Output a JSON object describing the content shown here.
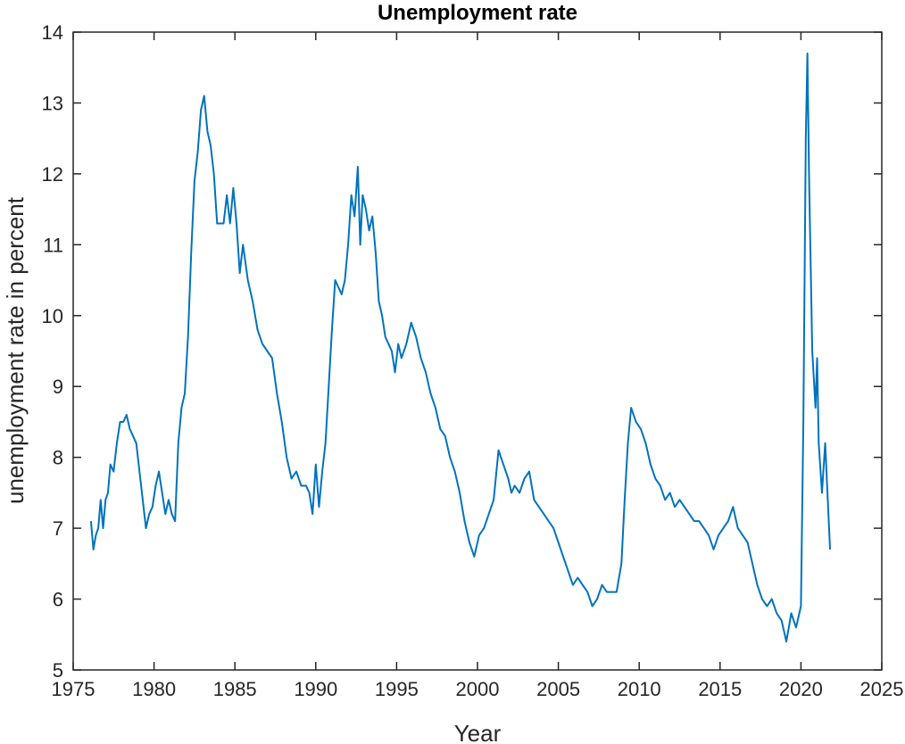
{
  "chart_data": {
    "type": "line",
    "title": "Unemployment rate",
    "xlabel": "Year",
    "ylabel": "unemployment rate in percent",
    "xlim": [
      1975,
      2025
    ],
    "ylim": [
      5,
      14
    ],
    "xticks": [
      1975,
      1980,
      1985,
      1990,
      1995,
      2000,
      2005,
      2010,
      2015,
      2020,
      2025
    ],
    "yticks": [
      5,
      6,
      7,
      8,
      9,
      10,
      11,
      12,
      13,
      14
    ],
    "grid": false,
    "legend": "none",
    "series": [
      {
        "color": "#0072BD",
        "x": [
          1976.1,
          1976.25,
          1976.4,
          1976.55,
          1976.7,
          1976.85,
          1977.0,
          1977.15,
          1977.3,
          1977.5,
          1977.7,
          1977.9,
          1978.1,
          1978.3,
          1978.5,
          1978.7,
          1978.9,
          1979.1,
          1979.3,
          1979.5,
          1979.7,
          1979.9,
          1980.1,
          1980.3,
          1980.5,
          1980.7,
          1980.9,
          1981.1,
          1981.3,
          1981.5,
          1981.7,
          1981.9,
          1982.1,
          1982.3,
          1982.5,
          1982.7,
          1982.9,
          1983.1,
          1983.3,
          1983.5,
          1983.7,
          1983.9,
          1984.1,
          1984.3,
          1984.5,
          1984.7,
          1984.9,
          1985.1,
          1985.3,
          1985.5,
          1985.8,
          1986.1,
          1986.4,
          1986.7,
          1987.0,
          1987.3,
          1987.6,
          1987.9,
          1988.2,
          1988.5,
          1988.8,
          1989.1,
          1989.4,
          1989.6,
          1989.8,
          1990.0,
          1990.2,
          1990.4,
          1990.6,
          1990.8,
          1991.0,
          1991.2,
          1991.4,
          1991.6,
          1991.8,
          1992.0,
          1992.2,
          1992.4,
          1992.6,
          1992.75,
          1992.9,
          1993.1,
          1993.3,
          1993.5,
          1993.7,
          1993.9,
          1994.1,
          1994.3,
          1994.5,
          1994.7,
          1994.9,
          1995.1,
          1995.3,
          1995.6,
          1995.9,
          1996.2,
          1996.5,
          1996.8,
          1997.1,
          1997.4,
          1997.7,
          1998.0,
          1998.3,
          1998.6,
          1998.9,
          1999.2,
          1999.5,
          1999.8,
          2000.1,
          2000.4,
          2000.7,
          2001.0,
          2001.3,
          2001.6,
          2001.9,
          2002.1,
          2002.3,
          2002.6,
          2002.9,
          2003.2,
          2003.5,
          2003.8,
          2004.1,
          2004.4,
          2004.7,
          2005.0,
          2005.3,
          2005.6,
          2005.9,
          2006.2,
          2006.5,
          2006.8,
          2007.1,
          2007.4,
          2007.7,
          2008.0,
          2008.3,
          2008.6,
          2008.9,
          2009.1,
          2009.3,
          2009.5,
          2009.8,
          2010.1,
          2010.4,
          2010.7,
          2011.0,
          2011.3,
          2011.6,
          2011.9,
          2012.2,
          2012.5,
          2012.8,
          2013.1,
          2013.4,
          2013.7,
          2014.0,
          2014.3,
          2014.6,
          2014.9,
          2015.2,
          2015.5,
          2015.8,
          2016.1,
          2016.4,
          2016.7,
          2017.0,
          2017.3,
          2017.6,
          2017.9,
          2018.2,
          2018.5,
          2018.8,
          2019.1,
          2019.4,
          2019.7,
          2020.0,
          2020.15,
          2020.3,
          2020.4,
          2020.5,
          2020.7,
          2020.9,
          2021.0,
          2021.1,
          2021.3,
          2021.5,
          2021.7,
          2021.8
        ],
        "y": [
          7.1,
          6.7,
          6.9,
          7.0,
          7.4,
          7.0,
          7.4,
          7.5,
          7.9,
          7.8,
          8.2,
          8.5,
          8.5,
          8.6,
          8.4,
          8.3,
          8.2,
          7.8,
          7.4,
          7.0,
          7.2,
          7.3,
          7.6,
          7.8,
          7.5,
          7.2,
          7.4,
          7.2,
          7.1,
          8.2,
          8.7,
          8.9,
          9.7,
          10.9,
          11.9,
          12.3,
          12.9,
          13.1,
          12.6,
          12.4,
          12.0,
          11.3,
          11.3,
          11.3,
          11.7,
          11.3,
          11.8,
          11.3,
          10.6,
          11.0,
          10.5,
          10.2,
          9.8,
          9.6,
          9.5,
          9.4,
          8.9,
          8.5,
          8.0,
          7.7,
          7.8,
          7.6,
          7.6,
          7.5,
          7.2,
          7.9,
          7.3,
          7.8,
          8.2,
          9.0,
          9.8,
          10.5,
          10.4,
          10.3,
          10.5,
          11.0,
          11.7,
          11.4,
          12.1,
          11.0,
          11.7,
          11.5,
          11.2,
          11.4,
          10.9,
          10.2,
          10.0,
          9.7,
          9.6,
          9.5,
          9.2,
          9.6,
          9.4,
          9.6,
          9.9,
          9.7,
          9.4,
          9.2,
          8.9,
          8.7,
          8.4,
          8.3,
          8.0,
          7.8,
          7.5,
          7.1,
          6.8,
          6.6,
          6.9,
          7.0,
          7.2,
          7.4,
          8.1,
          7.9,
          7.7,
          7.5,
          7.6,
          7.5,
          7.7,
          7.8,
          7.4,
          7.3,
          7.2,
          7.1,
          7.0,
          6.8,
          6.6,
          6.4,
          6.2,
          6.3,
          6.2,
          6.1,
          5.9,
          6.0,
          6.2,
          6.1,
          6.1,
          6.1,
          6.5,
          7.4,
          8.2,
          8.7,
          8.5,
          8.4,
          8.2,
          7.9,
          7.7,
          7.6,
          7.4,
          7.5,
          7.3,
          7.4,
          7.3,
          7.2,
          7.1,
          7.1,
          7.0,
          6.9,
          6.7,
          6.9,
          7.0,
          7.1,
          7.3,
          7.0,
          6.9,
          6.8,
          6.5,
          6.2,
          6.0,
          5.9,
          6.0,
          5.8,
          5.7,
          5.4,
          5.8,
          5.6,
          5.9,
          8.5,
          12.5,
          13.7,
          12.0,
          9.5,
          8.7,
          9.4,
          8.2,
          7.5,
          8.2,
          7.2,
          6.7
        ]
      }
    ]
  }
}
